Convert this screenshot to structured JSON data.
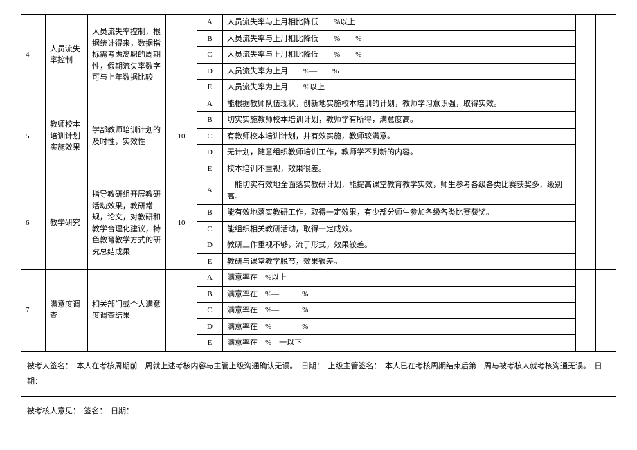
{
  "rows": [
    {
      "idx": "4",
      "name": "人员流失率控制",
      "desc": "人员流失率控制，根据统计得来，数据指标需考虑离职的周期性，假期流失率数字可与上年数据比较",
      "weight": "",
      "grades": [
        {
          "g": "A",
          "t": "人员流失率与上月相比降低　　%以上"
        },
        {
          "g": "B",
          "t": "人员流失率与上月相比降低　　%—　%"
        },
        {
          "g": "C",
          "t": "人员流失率与上月相比降低　　%—　%"
        },
        {
          "g": "D",
          "t": "人员流失率为上月　　%—　　%"
        },
        {
          "g": "E",
          "t": "人员流失率为上月　　%以上"
        }
      ]
    },
    {
      "idx": "5",
      "name": "教师校本培训计划实施效果",
      "desc": "学部教师培训计划的及时性，实效性",
      "weight": "10",
      "grades": [
        {
          "g": "A",
          "t": "能根据教师队伍现状，创新地实施校本培训的计划，教师学习意识强，取得实效。"
        },
        {
          "g": "B",
          "t": "切实实施教师校本培训计划，教师学有所得，满意度高。"
        },
        {
          "g": "C",
          "t": "有教师校本培训计划，并有效实施，教师较满意。"
        },
        {
          "g": "D",
          "t": "无计划，随意组织教师培训工作，教师学不到新的内容。"
        },
        {
          "g": "E",
          "t": "校本培训不重视，效果很差。"
        }
      ]
    },
    {
      "idx": "6",
      "name": "教学研究",
      "desc": "指导教研组开展教研活动效果，教研常规，论文，对教研和教学合理化建议，特色教育教学方式的研究总结成果",
      "weight": "10",
      "grades": [
        {
          "g": "A",
          "t": "　能切实有效地全面落实教研计划，能提高课堂教育教学实效，师生参考各级各类比赛获奖多，级别高。"
        },
        {
          "g": "B",
          "t": "能有效地落实教研工作，取得一定效果，有少部分师生参加各级各类比赛获奖。"
        },
        {
          "g": "C",
          "t": "能组织相关教研活动，取得一定成效。"
        },
        {
          "g": "D",
          "t": "教研工作重视不够，流于形式，效果较差。"
        },
        {
          "g": "E",
          "t": "教研与课堂教学脱节，效果很差。"
        }
      ]
    },
    {
      "idx": "7",
      "name": "满意度调查",
      "desc": "相关部门或个人满意度调查结果",
      "weight": "",
      "grades": [
        {
          "g": "A",
          "t": "满意率在　%以上"
        },
        {
          "g": "B",
          "t": "满意率在　%—　　　%"
        },
        {
          "g": "C",
          "t": "满意率在　%—　　　%"
        },
        {
          "g": "D",
          "t": "满意率在　%—　　　%"
        },
        {
          "g": "E",
          "t": "满意率在　%　一以下"
        }
      ]
    }
  ],
  "footer1": "被考人签名：　本人在考核周期前　周就上述考核内容与主管上级沟通确认无误。　日期：　上级主管签名：　本人已在考核周期结束后第　周与被考核人就考核沟通无误。　日期：",
  "footer2": "被考核人意见：　签名：　日期："
}
